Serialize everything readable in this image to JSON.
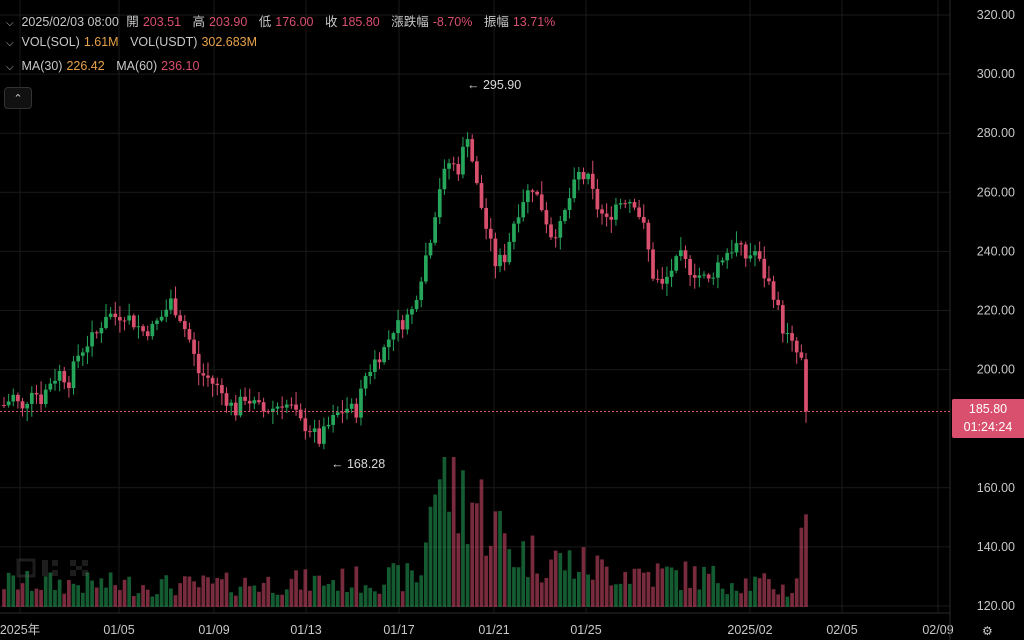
{
  "header": {
    "datetime": "2025/02/03 08:00",
    "open_label": "開",
    "open_value": "203.51",
    "high_label": "高",
    "high_value": "203.90",
    "low_label": "低",
    "low_value": "176.00",
    "close_label": "收",
    "close_value": "185.80",
    "change_label": "漲跌幅",
    "change_value": "-8.70%",
    "amplitude_label": "振幅",
    "amplitude_value": "13.71%"
  },
  "volume_row": {
    "sol_label": "VOL(SOL)",
    "sol_value": "1.61M",
    "usdt_label": "VOL(USDT)",
    "usdt_value": "302.683M"
  },
  "ma_row": {
    "ma30_label": "MA(30)",
    "ma30_value": "226.42",
    "ma60_label": "MA(60)",
    "ma60_value": "236.10"
  },
  "current_price": {
    "price": "185.80",
    "countdown": "01:24:24"
  },
  "colors": {
    "up": "#26a65b",
    "down": "#d94f6e",
    "ma30": "#e8a24a",
    "ma60": "#d94f6e",
    "text": "#c8c8c8",
    "grid": "#1a1a1a"
  },
  "icons": {
    "chevron": "chevron-down-icon",
    "collapse": "chevron-up-icon",
    "settings": "settings-icon",
    "logo": "okx-watermark"
  },
  "chart_data": {
    "type": "candlestick",
    "interval": "1H",
    "y_axis": {
      "ticks": [
        "320.00",
        "300.00",
        "280.00",
        "260.00",
        "240.00",
        "220.00",
        "200.00",
        "160.00",
        "140.00",
        "120.00"
      ],
      "ylim": [
        115,
        322
      ]
    },
    "x_axis": {
      "ticks": [
        "2025年",
        "01/05",
        "01/09",
        "01/13",
        "01/17",
        "01/21",
        "01/25",
        "2025/02",
        "02/05",
        "02/09"
      ]
    },
    "annotations": {
      "max": "295.90",
      "min": "168.28"
    },
    "price_path": [
      [
        0,
        188
      ],
      [
        2,
        191
      ],
      [
        4,
        186
      ],
      [
        6,
        194
      ],
      [
        8,
        190
      ],
      [
        10,
        196
      ],
      [
        12,
        199
      ],
      [
        14,
        196
      ],
      [
        16,
        205
      ],
      [
        18,
        209
      ],
      [
        20,
        212
      ],
      [
        22,
        219
      ],
      [
        24,
        218
      ],
      [
        26,
        219
      ],
      [
        28,
        216
      ],
      [
        30,
        213
      ],
      [
        32,
        214
      ],
      [
        34,
        218
      ],
      [
        36,
        223
      ],
      [
        38,
        218
      ],
      [
        40,
        210
      ],
      [
        42,
        199
      ],
      [
        44,
        197
      ],
      [
        46,
        194
      ],
      [
        48,
        190
      ],
      [
        50,
        186
      ],
      [
        52,
        191
      ],
      [
        54,
        188
      ],
      [
        56,
        186
      ],
      [
        58,
        187
      ],
      [
        60,
        189
      ],
      [
        62,
        187
      ],
      [
        64,
        182
      ],
      [
        66,
        180
      ],
      [
        68,
        176
      ],
      [
        70,
        181
      ],
      [
        72,
        185
      ],
      [
        74,
        187
      ],
      [
        76,
        186
      ],
      [
        78,
        198
      ],
      [
        80,
        203
      ],
      [
        82,
        207
      ],
      [
        84,
        214
      ],
      [
        86,
        216
      ],
      [
        88,
        220
      ],
      [
        90,
        232
      ],
      [
        92,
        245
      ],
      [
        94,
        262
      ],
      [
        96,
        270
      ],
      [
        98,
        268
      ],
      [
        100,
        280
      ],
      [
        102,
        262
      ],
      [
        104,
        248
      ],
      [
        106,
        236
      ],
      [
        108,
        238
      ],
      [
        110,
        250
      ],
      [
        112,
        258
      ],
      [
        114,
        262
      ],
      [
        116,
        255
      ],
      [
        118,
        246
      ],
      [
        120,
        248
      ],
      [
        122,
        258
      ],
      [
        124,
        266
      ],
      [
        126,
        264
      ],
      [
        128,
        255
      ],
      [
        130,
        250
      ],
      [
        132,
        256
      ],
      [
        134,
        258
      ],
      [
        136,
        257
      ],
      [
        138,
        248
      ],
      [
        140,
        232
      ],
      [
        142,
        228
      ],
      [
        144,
        234
      ],
      [
        146,
        238
      ],
      [
        148,
        234
      ],
      [
        150,
        232
      ],
      [
        152,
        230
      ],
      [
        154,
        236
      ],
      [
        156,
        240
      ],
      [
        158,
        242
      ],
      [
        160,
        238
      ],
      [
        162,
        240
      ],
      [
        164,
        232
      ],
      [
        166,
        226
      ],
      [
        168,
        214
      ],
      [
        170,
        208
      ],
      [
        172,
        203
      ],
      [
        173,
        186
      ]
    ],
    "volume_profile": [
      [
        0,
        8
      ],
      [
        40,
        7
      ],
      [
        80,
        9
      ],
      [
        90,
        10
      ],
      [
        92,
        40
      ],
      [
        96,
        42
      ],
      [
        98,
        34
      ],
      [
        100,
        38
      ],
      [
        104,
        30
      ],
      [
        110,
        18
      ],
      [
        130,
        12
      ],
      [
        150,
        10
      ],
      [
        166,
        7
      ],
      [
        170,
        5
      ],
      [
        171,
        12
      ],
      [
        172,
        20
      ],
      [
        173,
        33
      ]
    ]
  }
}
